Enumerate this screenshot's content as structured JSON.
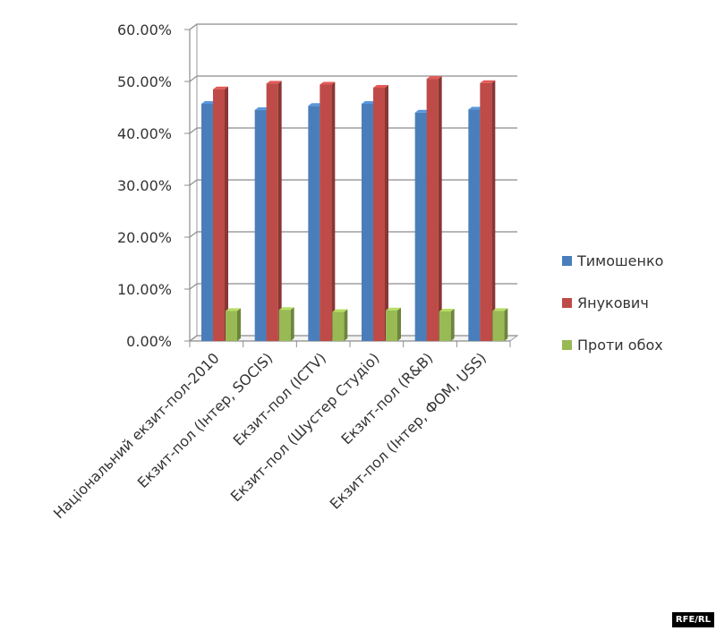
{
  "chart_data": {
    "type": "bar",
    "title": "",
    "xlabel": "",
    "ylabel": "",
    "ylim": [
      0,
      0.6
    ],
    "y_ticks": [
      0,
      0.1,
      0.2,
      0.3,
      0.4,
      0.5,
      0.6
    ],
    "y_tick_labels": [
      "0.00%",
      "10.00%",
      "20.00%",
      "30.00%",
      "40.00%",
      "50.00%",
      "60.00%"
    ],
    "grid": true,
    "legend_position": "right",
    "categories": [
      "Національний екзит-пол-2010",
      "Екзит-пол (Інтер, SOCIS)",
      "Екзит-пол (ICTV)",
      "Екзит-пол (Шустер Студіо)",
      "Екзит-пол (R&B)",
      "Екзит-пол (Інтер, ФОМ, USS)"
    ],
    "series": [
      {
        "name": "Тимошенко",
        "color": "#4a7ebb",
        "values": [
          0.457,
          0.445,
          0.453,
          0.457,
          0.44,
          0.446
        ]
      },
      {
        "name": "Янукович",
        "color": "#be4b48",
        "values": [
          0.485,
          0.496,
          0.494,
          0.488,
          0.505,
          0.497
        ]
      },
      {
        "name": "Проти обох",
        "color": "#98b954",
        "values": [
          0.058,
          0.06,
          0.056,
          0.059,
          0.057,
          0.058
        ]
      }
    ]
  },
  "credit": "RFE/RL"
}
